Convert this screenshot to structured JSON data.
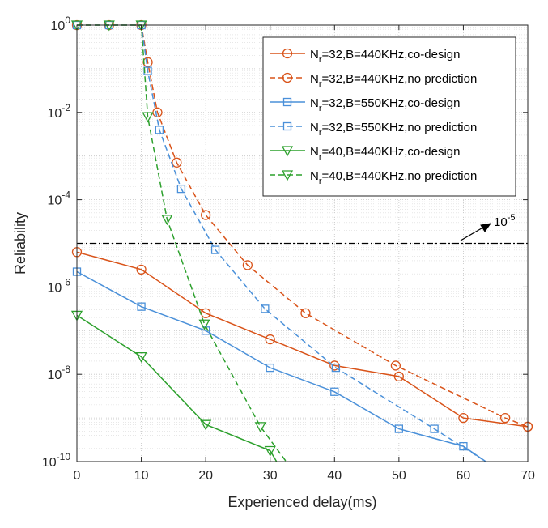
{
  "chart_data": {
    "type": "line",
    "xlabel": "Experienced delay(ms)",
    "ylabel": "Reliability",
    "xlim": [
      0,
      70
    ],
    "ylim_log10": [
      -10,
      0
    ],
    "y_scale": "log",
    "grid": true,
    "legend_position": "top-right",
    "x_ticks": [
      "0",
      "10",
      "20",
      "30",
      "40",
      "50",
      "60",
      "70"
    ],
    "y_ticks": [
      {
        "base": "10",
        "exp": "0",
        "log": 0
      },
      {
        "base": "10",
        "exp": "-2",
        "log": -2
      },
      {
        "base": "10",
        "exp": "-4",
        "log": -4
      },
      {
        "base": "10",
        "exp": "-6",
        "log": -6
      },
      {
        "base": "10",
        "exp": "-8",
        "log": -8
      },
      {
        "base": "10",
        "exp": "-10",
        "log": -10
      }
    ],
    "threshold": {
      "log": -5,
      "label_base": "10",
      "label_exp": "-5",
      "x_from": 0,
      "x_to": 70
    },
    "series": [
      {
        "name": "N_r=32,B=440KHz,co-design",
        "legend_main": "N",
        "legend_sub": "r",
        "legend_rest": "=32,B=440KHz,co-design",
        "color": "#D95319",
        "dash": false,
        "marker": "circle",
        "points": [
          [
            0,
            -5.2
          ],
          [
            10,
            -5.6
          ],
          [
            20,
            -6.6
          ],
          [
            30,
            -7.2
          ],
          [
            40,
            -7.8
          ],
          [
            50,
            -8.05
          ],
          [
            60,
            -9.0
          ],
          [
            70,
            -9.2
          ]
        ]
      },
      {
        "name": "N_r=32,B=440KHz,no prediction",
        "legend_main": "N",
        "legend_sub": "r",
        "legend_rest": "=32,B=440KHz,no prediction",
        "color": "#D95319",
        "dash": true,
        "marker": "circle",
        "points": [
          [
            0,
            0
          ],
          [
            5,
            0
          ],
          [
            10,
            0
          ],
          [
            11,
            -0.85
          ],
          [
            12.5,
            -2.0
          ],
          [
            15.5,
            -3.15
          ],
          [
            20,
            -4.35
          ],
          [
            26.5,
            -5.5
          ],
          [
            35.5,
            -6.6
          ],
          [
            49.5,
            -7.8
          ],
          [
            66.5,
            -9.0
          ],
          [
            70,
            -9.2
          ]
        ]
      },
      {
        "name": "N_r=32,B=550KHz,co-design",
        "legend_main": "N",
        "legend_sub": "r",
        "legend_rest": "=32,B=550KHz,co-design",
        "color": "#4A90D9",
        "dash": false,
        "marker": "square",
        "points": [
          [
            0,
            -5.65
          ],
          [
            10,
            -6.45
          ],
          [
            20,
            -7.0
          ],
          [
            30,
            -7.85
          ],
          [
            40,
            -8.4
          ],
          [
            50,
            -9.25
          ],
          [
            60,
            -9.65
          ],
          [
            63.5,
            -10.0
          ]
        ]
      },
      {
        "name": "N_r=32,B=550KHz,no prediction",
        "legend_main": "N",
        "legend_sub": "r",
        "legend_rest": "=32,B=550KHz,no prediction",
        "color": "#4A90D9",
        "dash": true,
        "marker": "square",
        "points": [
          [
            0,
            0
          ],
          [
            5,
            0
          ],
          [
            10,
            0
          ],
          [
            11,
            -1.05
          ],
          [
            12.8,
            -2.4
          ],
          [
            16.2,
            -3.75
          ],
          [
            21.5,
            -5.15
          ],
          [
            29.2,
            -6.5
          ],
          [
            40.2,
            -7.85
          ],
          [
            55.5,
            -9.25
          ],
          [
            63.5,
            -10.0
          ]
        ]
      },
      {
        "name": "N_r=40,B=440KHz,co-design",
        "legend_main": "N",
        "legend_sub": "r",
        "legend_rest": "=40,B=440KHz,co-design",
        "color": "#2CA02C",
        "dash": false,
        "marker": "triangle-down",
        "points": [
          [
            0,
            -6.65
          ],
          [
            10,
            -7.6
          ],
          [
            20,
            -9.15
          ],
          [
            30,
            -9.75
          ],
          [
            31,
            -10.0
          ]
        ]
      },
      {
        "name": "N_r=40,B=440KHz,no prediction",
        "legend_main": "N",
        "legend_sub": "r",
        "legend_rest": "=40,B=440KHz,no prediction",
        "color": "#2CA02C",
        "dash": true,
        "marker": "triangle-down",
        "points": [
          [
            0,
            0
          ],
          [
            5,
            0
          ],
          [
            10,
            0
          ],
          [
            11,
            -2.1
          ],
          [
            14,
            -4.45
          ],
          [
            19.8,
            -6.85
          ],
          [
            28.5,
            -9.2
          ],
          [
            32.5,
            -10.0
          ]
        ]
      }
    ]
  }
}
